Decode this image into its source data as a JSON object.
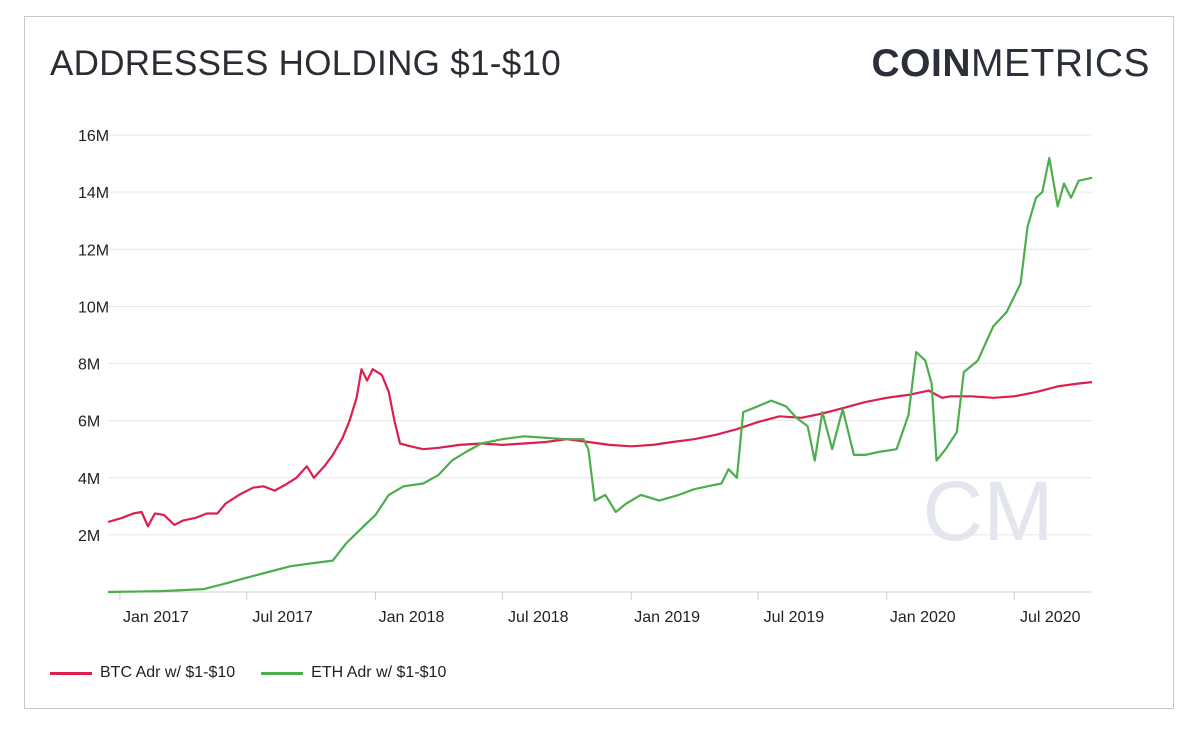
{
  "header": {
    "title": "ADDRESSES HOLDING $1-$10",
    "logo_bold": "COIN",
    "logo_light": "METRICS"
  },
  "watermark": "CM",
  "chart_data": {
    "type": "line",
    "title": "ADDRESSES HOLDING $1-$10",
    "xlabel": "",
    "ylabel": "",
    "xlim": [
      "2016-12-15",
      "2020-10-20"
    ],
    "ylim": [
      0,
      16000000
    ],
    "yticks": [
      2000000,
      4000000,
      6000000,
      8000000,
      10000000,
      12000000,
      14000000,
      16000000
    ],
    "ytick_labels": [
      "2M",
      "4M",
      "6M",
      "8M",
      "10M",
      "12M",
      "14M",
      "16M"
    ],
    "xticks": [
      "2017-01-01",
      "2017-07-01",
      "2018-01-01",
      "2018-07-01",
      "2019-01-01",
      "2019-07-01",
      "2020-01-01",
      "2020-07-01"
    ],
    "xtick_labels": [
      "Jan 2017",
      "Jul 2017",
      "Jan 2018",
      "Jul 2018",
      "Jan 2019",
      "Jul 2019",
      "Jan 2020",
      "Jul 2020"
    ],
    "grid": true,
    "legend_position": "bottom-left",
    "series": [
      {
        "name": "BTC Adr w/ $1-$10",
        "color": "#dc1f4f",
        "points": [
          [
            "2016-12-15",
            2450000
          ],
          [
            "2017-01-05",
            2600000
          ],
          [
            "2017-01-20",
            2750000
          ],
          [
            "2017-02-01",
            2800000
          ],
          [
            "2017-02-10",
            2300000
          ],
          [
            "2017-02-20",
            2750000
          ],
          [
            "2017-03-05",
            2700000
          ],
          [
            "2017-03-20",
            2350000
          ],
          [
            "2017-04-01",
            2500000
          ],
          [
            "2017-04-20",
            2600000
          ],
          [
            "2017-05-05",
            2750000
          ],
          [
            "2017-05-20",
            2750000
          ],
          [
            "2017-06-01",
            3100000
          ],
          [
            "2017-06-20",
            3400000
          ],
          [
            "2017-07-10",
            3650000
          ],
          [
            "2017-07-25",
            3700000
          ],
          [
            "2017-08-10",
            3550000
          ],
          [
            "2017-08-25",
            3750000
          ],
          [
            "2017-09-10",
            4000000
          ],
          [
            "2017-09-25",
            4400000
          ],
          [
            "2017-10-05",
            4000000
          ],
          [
            "2017-10-20",
            4400000
          ],
          [
            "2017-11-01",
            4800000
          ],
          [
            "2017-11-15",
            5400000
          ],
          [
            "2017-11-25",
            6000000
          ],
          [
            "2017-12-05",
            6800000
          ],
          [
            "2017-12-12",
            7800000
          ],
          [
            "2017-12-20",
            7400000
          ],
          [
            "2017-12-28",
            7800000
          ],
          [
            "2018-01-10",
            7600000
          ],
          [
            "2018-01-20",
            7000000
          ],
          [
            "2018-01-28",
            6000000
          ],
          [
            "2018-02-05",
            5200000
          ],
          [
            "2018-02-20",
            5100000
          ],
          [
            "2018-03-10",
            5000000
          ],
          [
            "2018-04-01",
            5050000
          ],
          [
            "2018-05-01",
            5150000
          ],
          [
            "2018-06-01",
            5200000
          ],
          [
            "2018-07-01",
            5150000
          ],
          [
            "2018-08-01",
            5200000
          ],
          [
            "2018-09-01",
            5250000
          ],
          [
            "2018-10-01",
            5350000
          ],
          [
            "2018-11-01",
            5250000
          ],
          [
            "2018-12-01",
            5150000
          ],
          [
            "2019-01-01",
            5100000
          ],
          [
            "2019-02-01",
            5150000
          ],
          [
            "2019-03-01",
            5250000
          ],
          [
            "2019-04-01",
            5350000
          ],
          [
            "2019-05-01",
            5500000
          ],
          [
            "2019-06-01",
            5700000
          ],
          [
            "2019-07-01",
            5950000
          ],
          [
            "2019-08-01",
            6150000
          ],
          [
            "2019-09-01",
            6100000
          ],
          [
            "2019-10-01",
            6250000
          ],
          [
            "2019-11-01",
            6450000
          ],
          [
            "2019-12-01",
            6650000
          ],
          [
            "2020-01-01",
            6800000
          ],
          [
            "2020-02-01",
            6900000
          ],
          [
            "2020-03-01",
            7050000
          ],
          [
            "2020-03-20",
            6800000
          ],
          [
            "2020-04-01",
            6850000
          ],
          [
            "2020-05-01",
            6850000
          ],
          [
            "2020-06-01",
            6800000
          ],
          [
            "2020-07-01",
            6850000
          ],
          [
            "2020-08-01",
            7000000
          ],
          [
            "2020-09-01",
            7200000
          ],
          [
            "2020-10-01",
            7300000
          ],
          [
            "2020-10-20",
            7350000
          ]
        ]
      },
      {
        "name": "ETH Adr w/ $1-$10",
        "color": "#4cae4c",
        "points": [
          [
            "2016-12-15",
            0
          ],
          [
            "2017-03-01",
            30000
          ],
          [
            "2017-05-01",
            100000
          ],
          [
            "2017-06-01",
            300000
          ],
          [
            "2017-07-01",
            500000
          ],
          [
            "2017-08-01",
            700000
          ],
          [
            "2017-09-01",
            900000
          ],
          [
            "2017-10-01",
            1000000
          ],
          [
            "2017-11-01",
            1100000
          ],
          [
            "2017-11-20",
            1700000
          ],
          [
            "2017-12-15",
            2300000
          ],
          [
            "2018-01-01",
            2700000
          ],
          [
            "2018-01-20",
            3400000
          ],
          [
            "2018-02-10",
            3700000
          ],
          [
            "2018-03-10",
            3800000
          ],
          [
            "2018-04-01",
            4100000
          ],
          [
            "2018-04-20",
            4600000
          ],
          [
            "2018-05-10",
            4900000
          ],
          [
            "2018-06-01",
            5200000
          ],
          [
            "2018-07-01",
            5350000
          ],
          [
            "2018-08-01",
            5450000
          ],
          [
            "2018-09-01",
            5400000
          ],
          [
            "2018-10-01",
            5350000
          ],
          [
            "2018-10-25",
            5350000
          ],
          [
            "2018-11-01",
            5000000
          ],
          [
            "2018-11-10",
            3200000
          ],
          [
            "2018-11-25",
            3400000
          ],
          [
            "2018-12-10",
            2800000
          ],
          [
            "2018-12-25",
            3100000
          ],
          [
            "2019-01-15",
            3400000
          ],
          [
            "2019-02-10",
            3200000
          ],
          [
            "2019-03-10",
            3400000
          ],
          [
            "2019-04-01",
            3600000
          ],
          [
            "2019-04-20",
            3700000
          ],
          [
            "2019-05-10",
            3800000
          ],
          [
            "2019-05-20",
            4300000
          ],
          [
            "2019-06-01",
            4000000
          ],
          [
            "2019-06-10",
            6300000
          ],
          [
            "2019-07-01",
            6500000
          ],
          [
            "2019-07-20",
            6700000
          ],
          [
            "2019-08-10",
            6500000
          ],
          [
            "2019-08-25",
            6100000
          ],
          [
            "2019-09-10",
            5800000
          ],
          [
            "2019-09-20",
            4600000
          ],
          [
            "2019-10-01",
            6300000
          ],
          [
            "2019-10-15",
            5000000
          ],
          [
            "2019-10-30",
            6400000
          ],
          [
            "2019-11-15",
            4800000
          ],
          [
            "2019-12-01",
            4800000
          ],
          [
            "2019-12-20",
            4900000
          ],
          [
            "2020-01-15",
            5000000
          ],
          [
            "2020-02-01",
            6200000
          ],
          [
            "2020-02-12",
            8400000
          ],
          [
            "2020-02-25",
            8100000
          ],
          [
            "2020-03-05",
            7300000
          ],
          [
            "2020-03-12",
            4600000
          ],
          [
            "2020-03-25",
            5000000
          ],
          [
            "2020-04-10",
            5600000
          ],
          [
            "2020-04-20",
            7700000
          ],
          [
            "2020-05-10",
            8100000
          ],
          [
            "2020-06-01",
            9300000
          ],
          [
            "2020-06-20",
            9800000
          ],
          [
            "2020-07-10",
            10800000
          ],
          [
            "2020-07-20",
            12800000
          ],
          [
            "2020-08-01",
            13800000
          ],
          [
            "2020-08-10",
            14000000
          ],
          [
            "2020-08-20",
            15200000
          ],
          [
            "2020-09-01",
            13500000
          ],
          [
            "2020-09-10",
            14300000
          ],
          [
            "2020-09-20",
            13800000
          ],
          [
            "2020-10-01",
            14400000
          ],
          [
            "2020-10-20",
            14500000
          ]
        ]
      }
    ]
  }
}
